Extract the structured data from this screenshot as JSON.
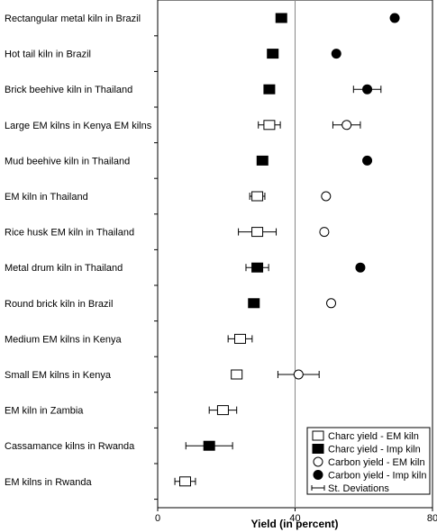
{
  "chart_data": {
    "type": "scatter",
    "orientation": "horizontal",
    "title": "",
    "xlabel": "Yield (in percent)",
    "ylabel": "",
    "xlim": [
      0,
      80
    ],
    "xticks": [
      0,
      40,
      80
    ],
    "reference_line_x": 40,
    "grid": false,
    "legend_position": "bottom-right",
    "categories": [
      "Rectangular metal kiln in Brazil",
      "Hot tail kiln in Brazil",
      "Brick beehive kiln in Thailand",
      "Large EM kilns in Kenya EM kilns",
      "Mud beehive kiln in Thailand",
      "EM kiln in Thailand",
      "Rice husk EM kiln in Thailand",
      "Metal drum kiln in Thailand",
      "Round brick kiln in Brazil",
      "Medium EM kilns in Kenya",
      "Small EM kilns in Kenya",
      "EM kiln in Zambia",
      "Cassamance kilns in Rwanda",
      "EM kilns in Rwanda"
    ],
    "series": [
      {
        "name": "Charc yield - EM kiln",
        "marker": "open-square",
        "points": [
          {
            "category": "Large EM kilns in Kenya EM kilns",
            "x": 32.5,
            "sd": 3.2
          },
          {
            "category": "EM kiln in Thailand",
            "x": 29,
            "sd": 2.2
          },
          {
            "category": "Rice husk EM kiln in Thailand",
            "x": 29,
            "sd": 5.5
          },
          {
            "category": "Medium EM kilns in Kenya",
            "x": 24,
            "sd": 3.5
          },
          {
            "category": "Small EM kilns in Kenya",
            "x": 23,
            "sd": null
          },
          {
            "category": "EM kiln in Zambia",
            "x": 19,
            "sd": 4
          },
          {
            "category": "EM kilns in Rwanda",
            "x": 8,
            "sd": 3
          }
        ]
      },
      {
        "name": "Charc yield - Imp kiln",
        "marker": "filled-square",
        "points": [
          {
            "category": "Rectangular metal kiln in Brazil",
            "x": 36,
            "sd": null
          },
          {
            "category": "Hot tail kiln in Brazil",
            "x": 33.5,
            "sd": null
          },
          {
            "category": "Brick beehive kiln in Thailand",
            "x": 32.5,
            "sd": null
          },
          {
            "category": "Mud beehive kiln in Thailand",
            "x": 30.5,
            "sd": null
          },
          {
            "category": "Metal drum kiln in Thailand",
            "x": 29,
            "sd": 3.3
          },
          {
            "category": "Round brick kiln in Brazil",
            "x": 28,
            "sd": null
          },
          {
            "category": "Cassamance kilns in Rwanda",
            "x": 15,
            "sd": 6.8
          }
        ]
      },
      {
        "name": "Carbon yield - EM kiln",
        "marker": "open-circle",
        "points": [
          {
            "category": "Large EM kilns in Kenya EM kilns",
            "x": 55,
            "sd": 4
          },
          {
            "category": "EM kiln in Thailand",
            "x": 49,
            "sd": null
          },
          {
            "category": "Rice husk EM kiln in Thailand",
            "x": 48.5,
            "sd": null
          },
          {
            "category": "Round brick kiln in Brazil",
            "x": 50.5,
            "sd": null
          },
          {
            "category": "Small EM kilns in Kenya",
            "x": 41,
            "sd": 6
          }
        ]
      },
      {
        "name": "Carbon yield - Imp kiln",
        "marker": "filled-circle",
        "points": [
          {
            "category": "Rectangular metal kiln in Brazil",
            "x": 69,
            "sd": null
          },
          {
            "category": "Hot tail kiln in Brazil",
            "x": 52,
            "sd": null
          },
          {
            "category": "Brick beehive kiln in Thailand",
            "x": 61,
            "sd": 4
          },
          {
            "category": "Mud beehive kiln in Thailand",
            "x": 61,
            "sd": null
          },
          {
            "category": "Metal drum kiln in Thailand",
            "x": 59,
            "sd": null
          }
        ]
      }
    ],
    "legend": [
      {
        "label": "Charc yield - EM kiln",
        "marker": "open-square"
      },
      {
        "label": "Charc yield - Imp kiln",
        "marker": "filled-square"
      },
      {
        "label": "Carbon yield - EM kiln",
        "marker": "open-circle"
      },
      {
        "label": "Carbon yield - Imp kiln",
        "marker": "filled-circle"
      },
      {
        "label": "St. Deviations",
        "marker": "errorbar"
      }
    ]
  }
}
